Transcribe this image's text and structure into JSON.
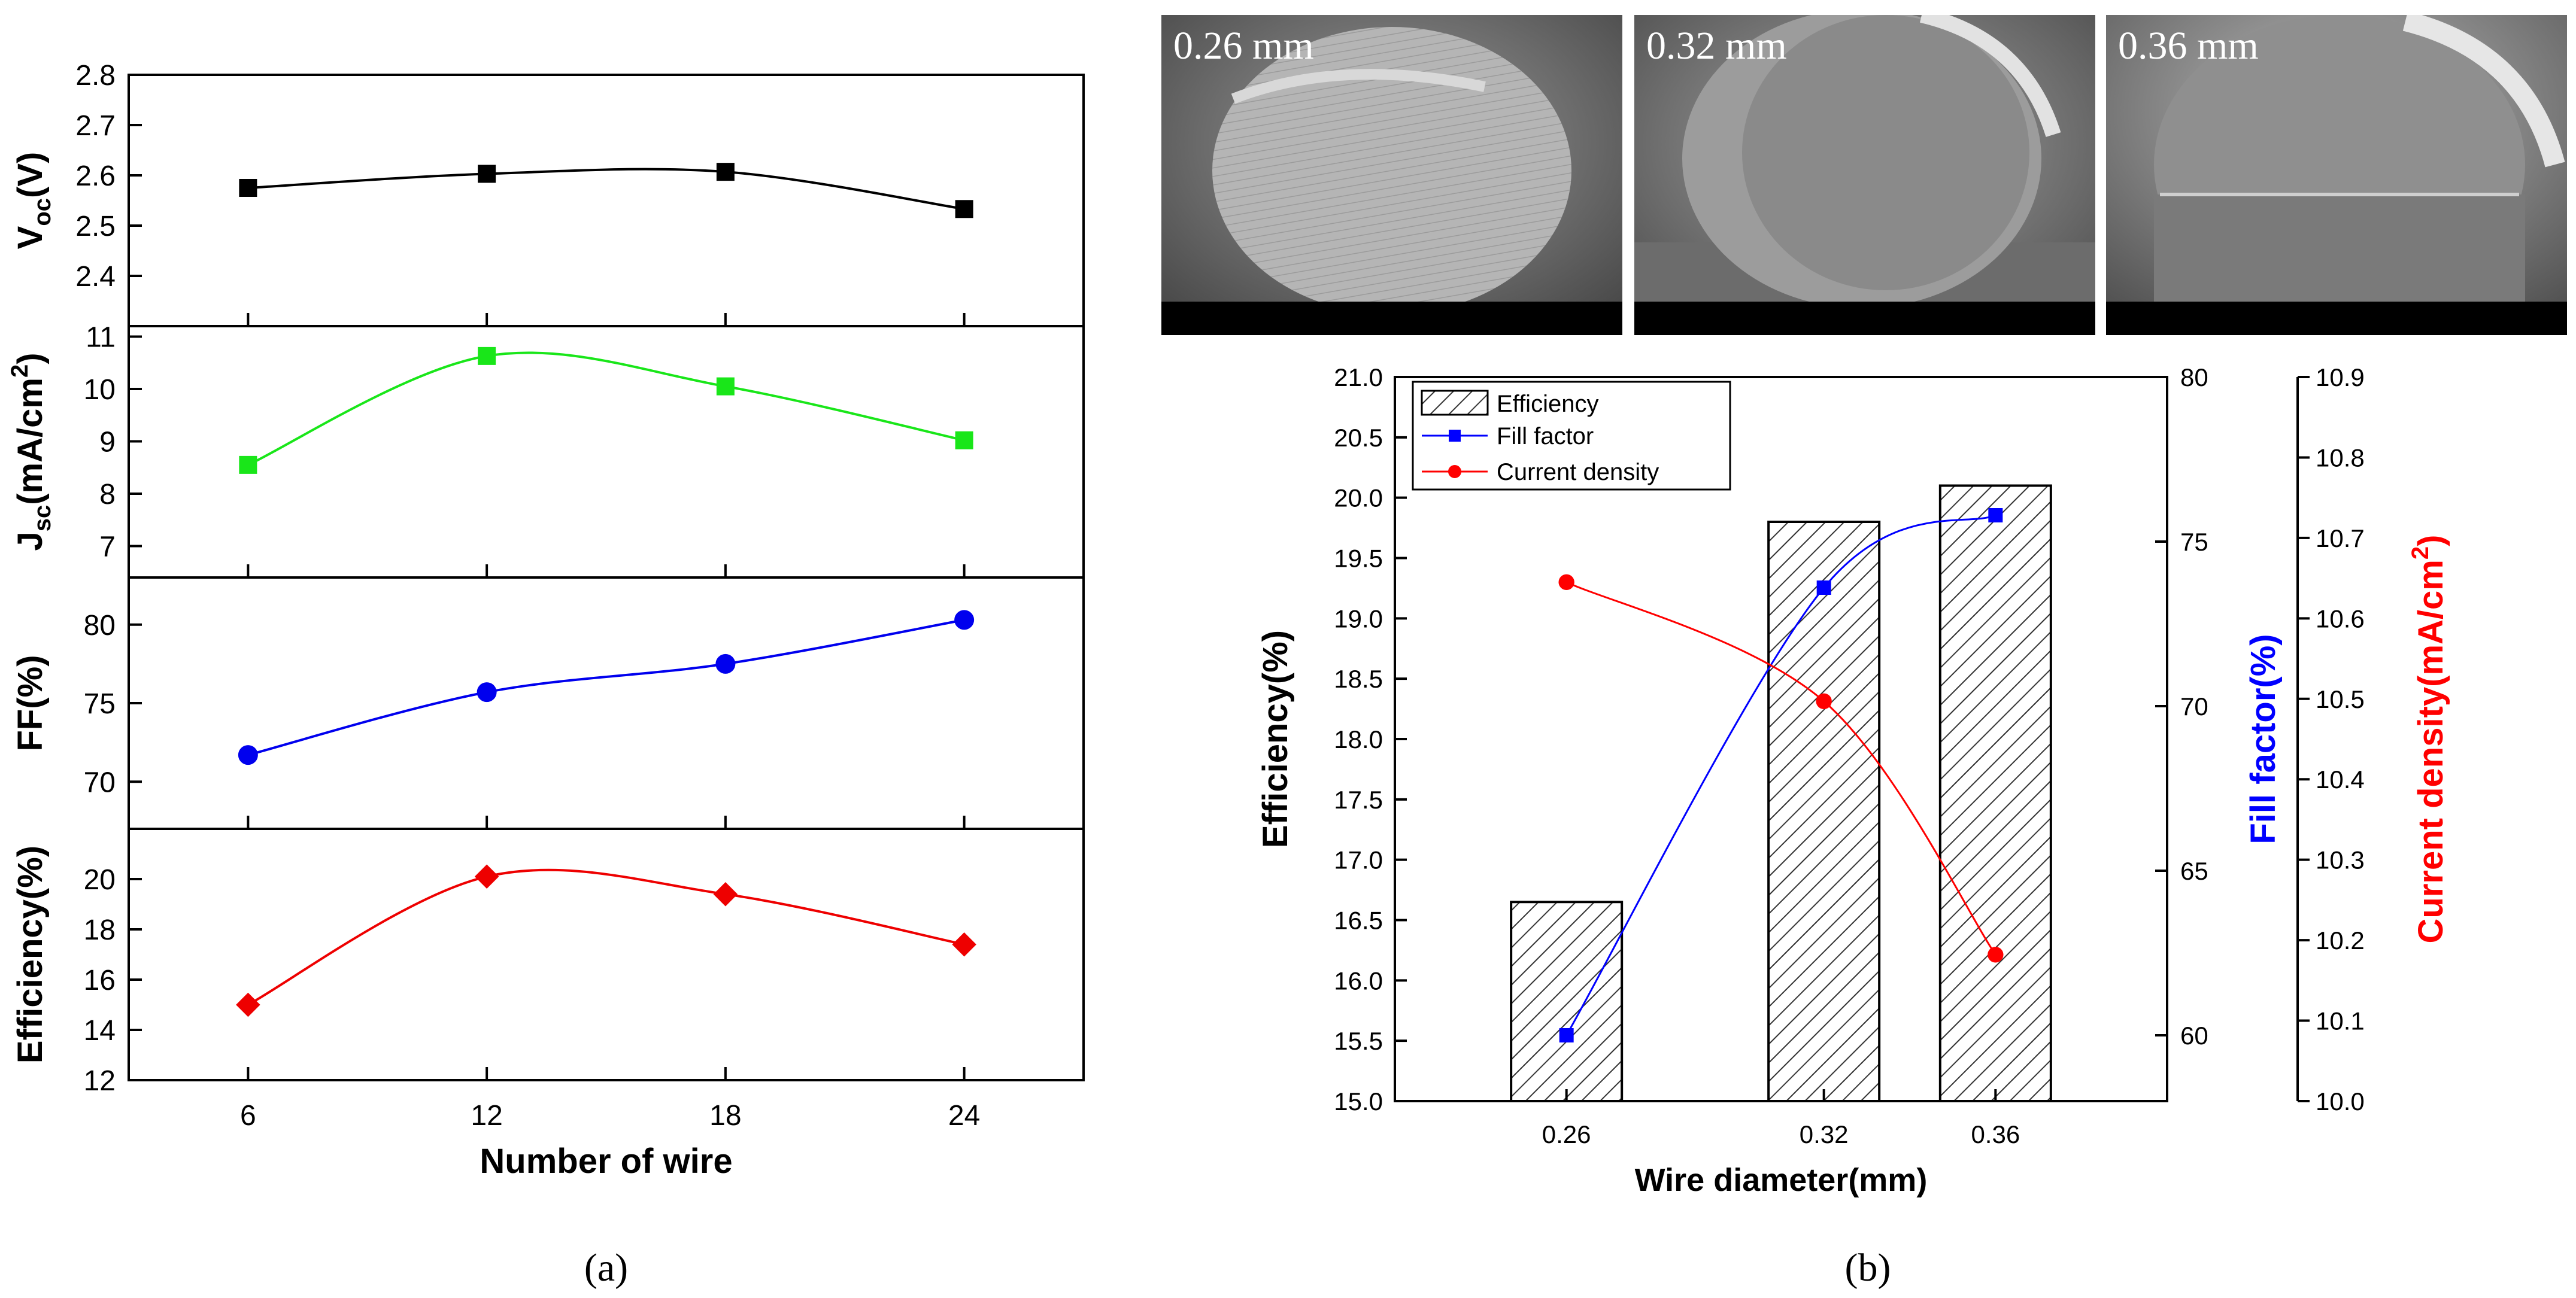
{
  "chart_data": [
    {
      "panel_label": "(a)",
      "type": "line",
      "x": [
        6,
        12,
        18,
        24
      ],
      "xlabel": "Number of wire",
      "xticks": [
        "6",
        "12",
        "18",
        "24"
      ],
      "xlim": [
        3,
        27
      ],
      "subplots": [
        {
          "ylabel_main": "V",
          "ylabel_sub": "oc",
          "ylabel_tail": "(V)",
          "ylabel_sup": "",
          "ylim": [
            2.3,
            2.8
          ],
          "yticks": [
            "2.4",
            "2.5",
            "2.6",
            "2.7",
            "2.8"
          ],
          "yticks_values": [
            2.4,
            2.5,
            2.6,
            2.7,
            2.8
          ],
          "values": [
            2.575,
            2.603,
            2.607,
            2.533
          ],
          "marker": "square",
          "color": "#000000"
        },
        {
          "ylabel_main": "J",
          "ylabel_sub": "sc",
          "ylabel_tail": "(mA/cm",
          "ylabel_sup": "2",
          "ylim": [
            6.4,
            11.2
          ],
          "yticks": [
            "7",
            "8",
            "9",
            "10",
            "11"
          ],
          "yticks_values": [
            7,
            8,
            9,
            10,
            11
          ],
          "values": [
            8.55,
            10.63,
            10.05,
            9.02
          ],
          "marker": "square",
          "color": "#19e619"
        },
        {
          "ylabel_main": "FF(%)",
          "ylabel_sub": "",
          "ylabel_tail": "",
          "ylabel_sup": "",
          "ylim": [
            67,
            83
          ],
          "yticks": [
            "70",
            "75",
            "80"
          ],
          "yticks_values": [
            70,
            75,
            80
          ],
          "values": [
            71.7,
            75.7,
            77.5,
            80.3
          ],
          "marker": "circle",
          "color": "#0000ee"
        },
        {
          "ylabel_main": "Efficiency(%)",
          "ylabel_sub": "",
          "ylabel_tail": "",
          "ylabel_sup": "",
          "ylim": [
            12,
            22
          ],
          "yticks": [
            "12",
            "14",
            "16",
            "18",
            "20"
          ],
          "yticks_values": [
            12,
            14,
            16,
            18,
            20
          ],
          "values": [
            15.0,
            20.1,
            19.4,
            17.4
          ],
          "marker": "diamond",
          "color": "#ee0000"
        }
      ]
    },
    {
      "panel_label": "(b)",
      "type": "bar",
      "categories": [
        "0.26",
        "0.32",
        "0.36"
      ],
      "xlabel": "Wire diameter(mm)",
      "bars": {
        "name": "Efficiency",
        "values": [
          16.65,
          19.8,
          20.1
        ],
        "ylabel": "Efficiency(%)",
        "ylim": [
          15.0,
          21.0
        ],
        "yticks": [
          "15.0",
          "15.5",
          "16.0",
          "16.5",
          "17.0",
          "17.5",
          "18.0",
          "18.5",
          "19.0",
          "19.5",
          "20.0",
          "20.5",
          "21.0"
        ]
      },
      "series": [
        {
          "name": "Fill factor",
          "values": [
            60.0,
            73.6,
            75.8
          ],
          "axis": "right1",
          "ylabel": "Fill factor(%)",
          "ylim": [
            58.0,
            80.0
          ],
          "yticks": [
            "60",
            "65",
            "70",
            "75",
            "80"
          ],
          "yticks_values": [
            60,
            65,
            70,
            75,
            80
          ],
          "color": "#0000ff",
          "marker": "square"
        },
        {
          "name": "Current density",
          "values": [
            10.645,
            10.497,
            10.182
          ],
          "axis": "right2",
          "ylabel_main": "Current density(mA/cm",
          "ylabel_sup": "2",
          "ylabel_tail": ")",
          "ylim": [
            10.0,
            10.9
          ],
          "yticks": [
            "10.0",
            "10.1",
            "10.2",
            "10.3",
            "10.4",
            "10.5",
            "10.6",
            "10.7",
            "10.8",
            "10.9"
          ],
          "yticks_values": [
            10.0,
            10.1,
            10.2,
            10.3,
            10.4,
            10.5,
            10.6,
            10.7,
            10.8,
            10.9
          ],
          "color": "#ff0000",
          "marker": "circle"
        }
      ],
      "legend": {
        "placement": "top-left"
      }
    }
  ],
  "sem_images": [
    {
      "label": "0.26 mm",
      "icon": "wire-cross-section-photo"
    },
    {
      "label": "0.32 mm",
      "icon": "wire-cross-section-photo"
    },
    {
      "label": "0.36 mm",
      "icon": "wire-cross-section-photo"
    }
  ]
}
